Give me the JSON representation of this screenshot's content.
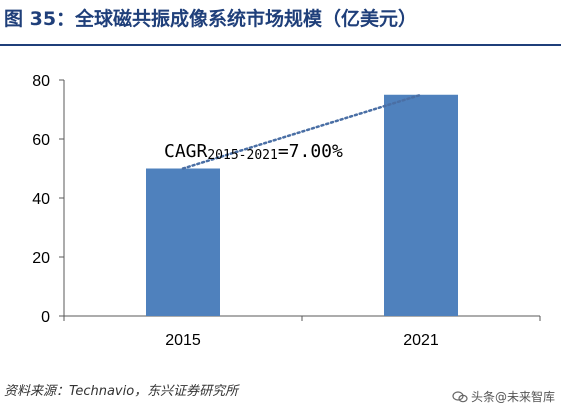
{
  "figure": {
    "title": "图 35：全球磁共振成像系统市场规模（亿美元）",
    "source": "资料来源：Technavio，东兴证券研究所",
    "watermark": "头条@未来智库"
  },
  "colors": {
    "title": "#1f3f7a",
    "rule": "#1f3f7a",
    "bar": "#4f81bd",
    "trend": "#4a6fa5",
    "axis": "#595959",
    "text": "#000000"
  },
  "chart_data": {
    "type": "bar",
    "categories": [
      "2015",
      "2021"
    ],
    "values": [
      50,
      75
    ],
    "ylim": [
      0,
      80
    ],
    "yticks": [
      0,
      20,
      40,
      60,
      80
    ],
    "grid": false,
    "xlabel": "",
    "ylabel": "",
    "trendline": {
      "style": "dotted",
      "from": "2015",
      "to": "2021"
    },
    "annotation": {
      "main": "CAGR",
      "sub": "2015-2021",
      "value": "=7.00%"
    }
  }
}
